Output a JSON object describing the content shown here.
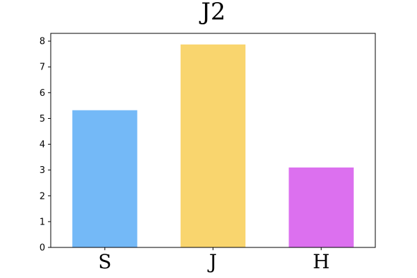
{
  "chart_data": {
    "type": "bar",
    "title": "J2",
    "categories": [
      "S",
      "J",
      "H"
    ],
    "values": [
      5.32,
      7.87,
      3.1
    ],
    "colors": [
      "#74b9f7",
      "#f9d56e",
      "#dc70ef"
    ],
    "ylim": [
      0,
      8.3
    ],
    "yticks": [
      "0",
      "1",
      "2",
      "3",
      "4",
      "5",
      "6",
      "7",
      "8"
    ],
    "xlabel": "",
    "ylabel": "",
    "grid": false
  }
}
